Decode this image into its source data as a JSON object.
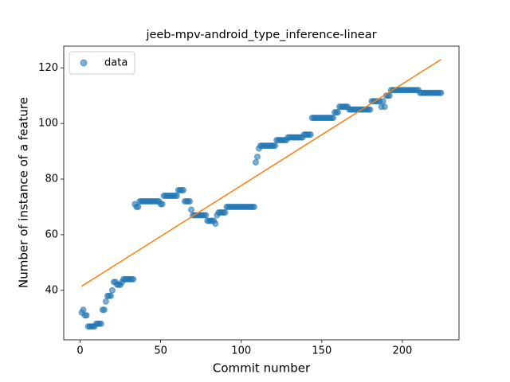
{
  "chart_data": {
    "type": "scatter",
    "title": "jeeb-mpv-android_type_inference-linear",
    "xlabel": "Commit number",
    "ylabel": "Number of instance of a feature",
    "xlim": [
      -10.15,
      235.15
    ],
    "ylim": [
      22.2,
      127.8
    ],
    "xticks": [
      0,
      50,
      100,
      150,
      200
    ],
    "yticks": [
      40,
      60,
      80,
      100,
      120
    ],
    "legend": "upper left",
    "series": [
      {
        "name": "data",
        "type": "scatter",
        "color": "#1f77b4",
        "x": [
          1,
          2,
          3,
          4,
          5,
          6,
          7,
          8,
          9,
          10,
          11,
          12,
          13,
          14,
          15,
          16,
          17,
          18,
          19,
          20,
          21,
          22,
          23,
          24,
          25,
          26,
          27,
          28,
          29,
          30,
          31,
          32,
          33,
          34,
          35,
          36,
          37,
          38,
          39,
          40,
          41,
          42,
          43,
          44,
          45,
          46,
          47,
          48,
          49,
          50,
          51,
          52,
          53,
          54,
          55,
          56,
          57,
          58,
          59,
          60,
          61,
          62,
          63,
          64,
          65,
          66,
          67,
          68,
          69,
          70,
          71,
          72,
          73,
          74,
          75,
          76,
          77,
          78,
          79,
          80,
          81,
          82,
          83,
          84,
          85,
          86,
          87,
          88,
          89,
          90,
          91,
          92,
          93,
          94,
          95,
          96,
          97,
          98,
          99,
          100,
          101,
          102,
          103,
          104,
          105,
          106,
          107,
          108,
          109,
          110,
          111,
          112,
          113,
          114,
          115,
          116,
          117,
          118,
          119,
          120,
          121,
          122,
          123,
          124,
          125,
          126,
          127,
          128,
          129,
          130,
          131,
          132,
          133,
          134,
          135,
          136,
          137,
          138,
          139,
          140,
          141,
          142,
          143,
          144,
          145,
          146,
          147,
          148,
          149,
          150,
          151,
          152,
          153,
          154,
          155,
          156,
          157,
          158,
          159,
          160,
          161,
          162,
          163,
          164,
          165,
          166,
          167,
          168,
          169,
          170,
          171,
          172,
          173,
          174,
          175,
          176,
          177,
          178,
          179,
          180,
          181,
          182,
          183,
          184,
          185,
          186,
          187,
          188,
          189,
          190,
          191,
          192,
          193,
          194,
          195,
          196,
          197,
          198,
          199,
          200,
          201,
          202,
          203,
          204,
          205,
          206,
          207,
          208,
          209,
          210,
          211,
          212,
          213,
          214,
          215,
          216,
          217,
          218,
          219,
          220,
          221,
          222,
          223,
          224
        ],
        "values": [
          32,
          33,
          31,
          31,
          27,
          27,
          27,
          27,
          27,
          28,
          28,
          28,
          28,
          33,
          33,
          36,
          38,
          38,
          38,
          40,
          43,
          43,
          42,
          42,
          42,
          43,
          44,
          44,
          44,
          44,
          44,
          44,
          44,
          71,
          70,
          70,
          72,
          72,
          72,
          72,
          72,
          72,
          72,
          72,
          72,
          72,
          72,
          72,
          72,
          71,
          71,
          74,
          74,
          74,
          74,
          74,
          74,
          74,
          74,
          74,
          76,
          76,
          76,
          76,
          72,
          72,
          72,
          72,
          69,
          67,
          67,
          67,
          67,
          67,
          67,
          67,
          67,
          67,
          65,
          65,
          65,
          65,
          65,
          64,
          67,
          68,
          68,
          68,
          68,
          68,
          70,
          70,
          70,
          70,
          70,
          70,
          70,
          70,
          70,
          70,
          70,
          70,
          70,
          70,
          70,
          70,
          70,
          70,
          86,
          88,
          91,
          92,
          92,
          92,
          92,
          92,
          92,
          92,
          92,
          92,
          92,
          94,
          94,
          94,
          94,
          94,
          94,
          94,
          95,
          95,
          95,
          95,
          95,
          95,
          95,
          95,
          95,
          95,
          96,
          96,
          96,
          96,
          96,
          102,
          102,
          102,
          102,
          102,
          102,
          102,
          102,
          102,
          102,
          102,
          102,
          102,
          102,
          104,
          104,
          104,
          106,
          106,
          106,
          106,
          106,
          106,
          105,
          105,
          105,
          105,
          105,
          105,
          105,
          105,
          105,
          105,
          105,
          105,
          105,
          105,
          108,
          108,
          108,
          108,
          108,
          108,
          106,
          108,
          106,
          110,
          110,
          110,
          112,
          112,
          112,
          112,
          112,
          112,
          112,
          112,
          112,
          112,
          112,
          112,
          112,
          112,
          112,
          112,
          112,
          112,
          111,
          111,
          111,
          111,
          111,
          111,
          111,
          111,
          111,
          111,
          111,
          111,
          111,
          111
        ]
      },
      {
        "type": "line",
        "color": "#ff7f0e",
        "x": [
          1,
          224
        ],
        "values": [
          41.5,
          123
        ]
      }
    ]
  }
}
